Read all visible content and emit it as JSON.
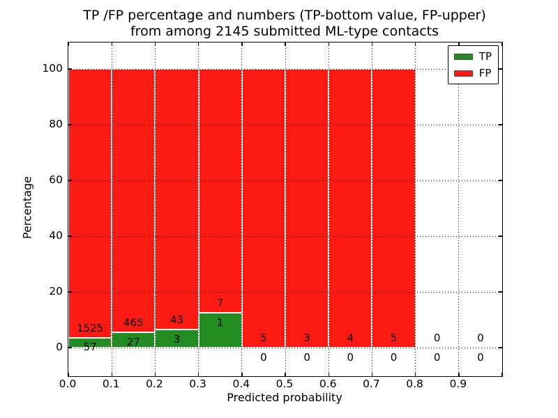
{
  "title": {
    "line1": "TP /FP percentage and numbers (TP-bottom value, FP-upper)",
    "line2": "from among 2145 submitted ML-type contacts"
  },
  "axes": {
    "ylabel": "Percentage",
    "xlabel": "Predicted probability",
    "y_tick_labels": [
      "0",
      "20",
      "40",
      "60",
      "80",
      "100"
    ],
    "x_tick_labels": [
      "0.0",
      "0.1",
      "0.2",
      "0.3",
      "0.4",
      "0.5",
      "0.6",
      "0.7",
      "0.8",
      "0.9"
    ]
  },
  "legend": {
    "items": [
      {
        "label": "TP",
        "color": "#228b22"
      },
      {
        "label": "FP",
        "color": "#fc1a12"
      }
    ],
    "position": "upper right"
  },
  "colors": {
    "tp_green": "#228b22",
    "fp_red": "#fc1a12",
    "text": "#000000",
    "background": "#ffffff"
  },
  "chart_data": {
    "type": "bar",
    "stacked": true,
    "normalized": "each drawn bar totals 100% of its bin; numbers printed are raw counts",
    "title": "TP /FP percentage and numbers (TP-bottom value, FP-upper) from among 2145 submitted ML-type contacts",
    "xlabel": "Predicted probability",
    "ylabel": "Percentage",
    "total_contacts": 2145,
    "bin_edges": [
      0.0,
      0.1,
      0.2,
      0.3,
      0.4,
      0.5,
      0.6,
      0.7,
      0.8,
      0.9,
      1.0
    ],
    "categories": [
      "0.0",
      "0.1",
      "0.2",
      "0.3",
      "0.4",
      "0.5",
      "0.6",
      "0.7",
      "0.8",
      "0.9"
    ],
    "series": [
      {
        "name": "TP",
        "color": "#228b22",
        "counts": [
          57,
          27,
          3,
          1,
          0,
          0,
          0,
          0,
          0,
          0
        ]
      },
      {
        "name": "FP",
        "color": "#fc1a12",
        "counts": [
          1525,
          465,
          43,
          7,
          5,
          3,
          4,
          5,
          0,
          0
        ]
      }
    ],
    "tp_percent_by_bin": [
      3.6,
      5.49,
      6.52,
      12.5,
      0,
      0,
      0,
      0,
      null,
      null
    ],
    "bars_drawn_only_for_bins_with_data": true,
    "y_ticks": [
      0,
      20,
      40,
      60,
      80,
      100
    ],
    "ylim": [
      0,
      100
    ],
    "grid": "dotted black, both axes, drawn above bars",
    "legend_position": "upper right"
  }
}
